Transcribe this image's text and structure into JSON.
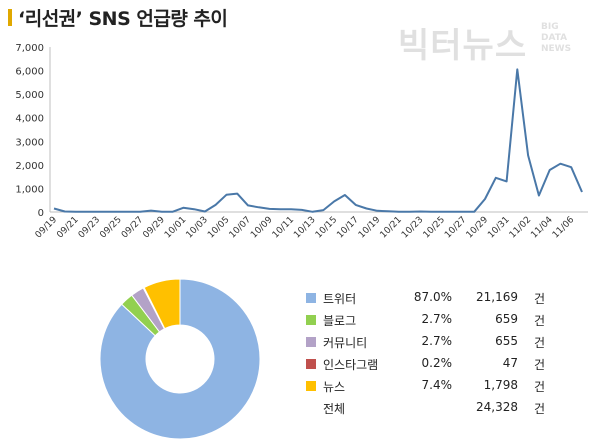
{
  "header": {
    "title": "‘리선권’ SNS 언급량 추이"
  },
  "watermark": {
    "main": "빅터뉴스",
    "sub": [
      "BIG",
      "DATA",
      "NEWS"
    ]
  },
  "colors": {
    "line": "#4a78a8",
    "trend_axis": "#bfbfbf",
    "title_accent": "#e0a800"
  },
  "chart_data": [
    {
      "type": "line",
      "title": "",
      "xlabel": "",
      "ylabel": "",
      "ylim": [
        0,
        7000
      ],
      "y_ticks": [
        0,
        1000,
        2000,
        3000,
        4000,
        5000,
        6000,
        7000
      ],
      "y_tick_labels": [
        "0",
        "1,000",
        "2,000",
        "3,000",
        "4,000",
        "5,000",
        "6,000",
        "7,000"
      ],
      "grid": false,
      "x": [
        "09/19",
        "09/20",
        "09/21",
        "09/22",
        "09/23",
        "09/24",
        "09/25",
        "09/26",
        "09/27",
        "09/28",
        "09/29",
        "09/30",
        "10/01",
        "10/02",
        "10/03",
        "10/04",
        "10/05",
        "10/06",
        "10/07",
        "10/08",
        "10/09",
        "10/10",
        "10/11",
        "10/12",
        "10/13",
        "10/14",
        "10/15",
        "10/16",
        "10/17",
        "10/18",
        "10/19",
        "10/20",
        "10/21",
        "10/22",
        "10/23",
        "10/24",
        "10/25",
        "10/26",
        "10/27",
        "10/28",
        "10/29",
        "10/30",
        "10/31",
        "11/01",
        "11/02",
        "11/03",
        "11/04",
        "11/05",
        "11/06",
        "11/07"
      ],
      "x_tick_labels": [
        "09/19",
        "09/21",
        "09/23",
        "09/25",
        "09/27",
        "09/29",
        "10/01",
        "10/03",
        "10/05",
        "10/07",
        "10/09",
        "10/11",
        "10/13",
        "10/15",
        "10/17",
        "10/19",
        "10/21",
        "10/23",
        "10/25",
        "10/27",
        "10/29",
        "10/31",
        "11/02",
        "11/04",
        "11/06"
      ],
      "series": [
        {
          "values": [
            150,
            20,
            10,
            10,
            10,
            10,
            10,
            10,
            10,
            60,
            10,
            10,
            180,
            120,
            20,
            300,
            730,
            780,
            280,
            200,
            130,
            120,
            120,
            90,
            10,
            80,
            450,
            720,
            300,
            150,
            50,
            30,
            10,
            10,
            20,
            10,
            10,
            10,
            10,
            10,
            550,
            1450,
            1300,
            6050,
            2400,
            700,
            1780,
            2050,
            1900,
            850
          ]
        }
      ]
    },
    {
      "type": "pie",
      "title": "",
      "donut": true,
      "legend_position": "right",
      "unit": "건",
      "total_label": "전체",
      "total_value": "24,328",
      "slices": [
        {
          "label": "트위터",
          "percent": "87.0%",
          "count": "21,169",
          "value": 87.0,
          "color": "#8eb4e3"
        },
        {
          "label": "블로그",
          "percent": "2.7%",
          "count": "659",
          "value": 2.7,
          "color": "#92d050"
        },
        {
          "label": "커뮤니티",
          "percent": "2.7%",
          "count": "655",
          "value": 2.7,
          "color": "#b3a2c7"
        },
        {
          "label": "인스타그램",
          "percent": "0.2%",
          "count": "47",
          "value": 0.2,
          "color": "#c0504d"
        },
        {
          "label": "뉴스",
          "percent": "7.4%",
          "count": "1,798",
          "value": 7.4,
          "color": "#ffc000"
        }
      ]
    }
  ]
}
